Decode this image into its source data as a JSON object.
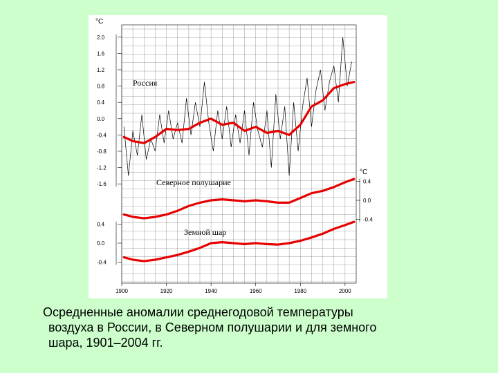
{
  "caption": {
    "line1": "Осредненные аномалии среднегодовой температуры",
    "line2": "воздуха в России, в Северном полушарии и для земного",
    "line3": "шара, 1901–2004 гг."
  },
  "chart_data": {
    "type": "line",
    "x_ticks": [
      1900,
      1920,
      1940,
      1960,
      1980,
      2000
    ],
    "xlim": [
      1900,
      2005
    ],
    "grid": true,
    "colors": {
      "smoothed": "#e60000",
      "raw": "#000000",
      "grid": "#000000"
    },
    "panels": [
      {
        "name": "Россия",
        "unit": "°C",
        "axis_side": "left",
        "ylim": [
          -1.8,
          2.2
        ],
        "yticks": [
          "2.0",
          "1.6",
          "1.2",
          "0.8",
          "0.4",
          "0.0",
          "-0.4",
          "-0.8",
          "-1.2",
          "-1.6"
        ],
        "ytick_values": [
          2.0,
          1.6,
          1.2,
          0.8,
          0.4,
          0.0,
          -0.4,
          -0.8,
          -1.2,
          -1.6
        ],
        "smoothed": {
          "x": [
            1901,
            1905,
            1910,
            1915,
            1920,
            1925,
            1930,
            1935,
            1940,
            1945,
            1950,
            1955,
            1960,
            1965,
            1970,
            1975,
            1980,
            1985,
            1990,
            1995,
            2000,
            2004
          ],
          "y": [
            -0.45,
            -0.55,
            -0.6,
            -0.45,
            -0.25,
            -0.28,
            -0.25,
            -0.1,
            0.0,
            -0.15,
            -0.1,
            -0.3,
            -0.2,
            -0.35,
            -0.3,
            -0.4,
            -0.15,
            0.3,
            0.45,
            0.75,
            0.85,
            0.9
          ]
        },
        "raw": {
          "x": [
            1901,
            1903,
            1905,
            1907,
            1909,
            1911,
            1913,
            1915,
            1917,
            1919,
            1921,
            1923,
            1925,
            1927,
            1929,
            1931,
            1933,
            1935,
            1937,
            1939,
            1941,
            1943,
            1945,
            1947,
            1949,
            1951,
            1953,
            1955,
            1957,
            1959,
            1961,
            1963,
            1965,
            1967,
            1969,
            1971,
            1973,
            1975,
            1977,
            1979,
            1981,
            1983,
            1985,
            1987,
            1989,
            1991,
            1993,
            1995,
            1997,
            1999,
            2001,
            2003
          ],
          "y": [
            -0.2,
            -1.4,
            -0.3,
            -0.9,
            0.1,
            -1.0,
            -0.5,
            -0.8,
            0.1,
            -0.6,
            0.2,
            -0.5,
            -0.1,
            -0.6,
            0.5,
            -0.4,
            0.4,
            -0.2,
            0.9,
            -0.1,
            -0.8,
            0.2,
            -0.5,
            0.3,
            -0.7,
            0.1,
            -0.6,
            0.2,
            -0.9,
            0.4,
            -0.3,
            -0.7,
            0.2,
            -1.2,
            0.6,
            -0.5,
            0.3,
            -1.4,
            0.4,
            -0.8,
            0.3,
            1.0,
            -0.2,
            0.7,
            1.2,
            0.2,
            0.9,
            1.3,
            0.4,
            2.0,
            0.8,
            1.4
          ]
        }
      },
      {
        "name": "Северное полушарие",
        "unit": "°C",
        "axis_side": "right",
        "ylim": [
          -0.7,
          0.7
        ],
        "yticks": [
          "0.4",
          "0.0",
          "-0.4"
        ],
        "ytick_values": [
          0.4,
          0.0,
          -0.4
        ],
        "smoothed": {
          "x": [
            1901,
            1905,
            1910,
            1915,
            1920,
            1925,
            1930,
            1935,
            1940,
            1945,
            1950,
            1955,
            1960,
            1965,
            1970,
            1975,
            1980,
            1985,
            1990,
            1995,
            2000,
            2004
          ],
          "y": [
            -0.3,
            -0.35,
            -0.38,
            -0.35,
            -0.3,
            -0.22,
            -0.12,
            -0.05,
            0.0,
            0.02,
            0.0,
            -0.02,
            0.0,
            -0.02,
            -0.05,
            -0.05,
            0.05,
            0.15,
            0.2,
            0.28,
            0.38,
            0.45
          ]
        }
      },
      {
        "name": "Земной шар",
        "unit": "°C",
        "axis_side": "left",
        "ylim": [
          -0.7,
          0.7
        ],
        "yticks": [
          "0.4",
          "0.0",
          "-0.4"
        ],
        "ytick_values": [
          0.4,
          0.0,
          -0.4
        ],
        "smoothed": {
          "x": [
            1901,
            1905,
            1910,
            1915,
            1920,
            1925,
            1930,
            1935,
            1940,
            1945,
            1950,
            1955,
            1960,
            1965,
            1970,
            1975,
            1980,
            1985,
            1990,
            1995,
            2000,
            2004
          ],
          "y": [
            -0.3,
            -0.35,
            -0.38,
            -0.35,
            -0.3,
            -0.25,
            -0.18,
            -0.1,
            0.0,
            0.02,
            0.0,
            -0.02,
            0.0,
            -0.02,
            -0.03,
            0.0,
            0.05,
            0.12,
            0.2,
            0.3,
            0.38,
            0.45
          ]
        }
      }
    ]
  }
}
